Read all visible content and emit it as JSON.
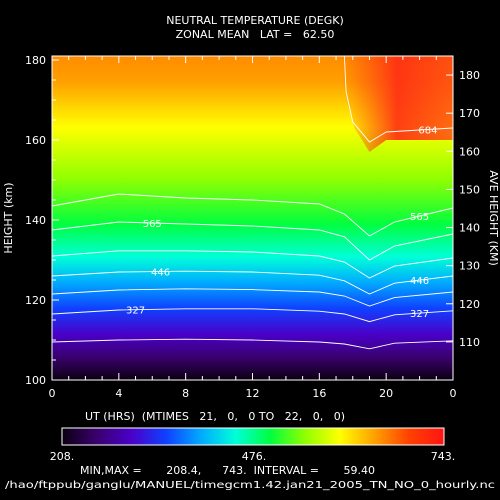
{
  "chart_data": {
    "type": "heatmap",
    "title": "NEUTRAL TEMPERATURE (DEGK)",
    "subtitle": "ZONAL MEAN   LAT =   62.50",
    "xlabel": "UT (HRS)  (MTIMES   21,   0,   0 TO   22,   0,   0)",
    "ylabel": "HEIGHT (km)",
    "y2label": "AVE HEIGHT (KM)",
    "x_ticks": [
      "0",
      "4",
      "8",
      "12",
      "16",
      "20",
      "0"
    ],
    "x_tick_values": [
      0,
      4,
      8,
      12,
      16,
      20,
      24
    ],
    "xlim": [
      0,
      24
    ],
    "y_ticks": [
      "100",
      "120",
      "140",
      "160",
      "180"
    ],
    "y_tick_values": [
      100,
      120,
      140,
      160,
      180
    ],
    "ylim": [
      100,
      181
    ],
    "y2_ticks": [
      "110",
      "120",
      "130",
      "140",
      "150",
      "160",
      "170",
      "180"
    ],
    "y2_tick_values": [
      110,
      120,
      130,
      140,
      150,
      160,
      170,
      180
    ],
    "y2lim": [
      100,
      185
    ],
    "colorbar": {
      "min_label": "208.",
      "mid_label": "476.",
      "max_label": "743.",
      "min": 208,
      "max": 743,
      "colors": [
        "#0a0010",
        "#3a006e",
        "#4a00c8",
        "#1040ff",
        "#00aaff",
        "#00ffd8",
        "#00ff40",
        "#90ff00",
        "#ffff00",
        "#ffa000",
        "#ff4000",
        "#ff1414"
      ]
    },
    "contours": [
      {
        "value": 327,
        "label": "327",
        "points": [
          [
            0,
            109.5
          ],
          [
            4,
            110.0
          ],
          [
            8,
            110.2
          ],
          [
            12,
            110.0
          ],
          [
            16,
            109.5
          ],
          [
            17.5,
            109.0
          ],
          [
            19,
            107.8
          ],
          [
            20.5,
            109.2
          ],
          [
            24,
            109.8
          ]
        ]
      },
      {
        "value": 327,
        "label": "327",
        "points": [
          [
            0,
            116.5
          ],
          [
            4,
            117.5
          ],
          [
            8,
            117.8
          ],
          [
            12,
            117.8
          ],
          [
            16,
            117.2
          ],
          [
            17.5,
            116.5
          ],
          [
            19,
            114.6
          ],
          [
            20.5,
            116.3
          ],
          [
            24,
            117.3
          ]
        ]
      },
      {
        "value": 327,
        "label": "327",
        "points": [
          [
            0,
            121.5
          ],
          [
            4,
            122.5
          ],
          [
            8,
            122.8
          ],
          [
            12,
            122.6
          ],
          [
            16,
            122.0
          ],
          [
            17.5,
            121.0
          ],
          [
            19,
            118.5
          ],
          [
            20.5,
            120.6
          ],
          [
            24,
            122.0
          ]
        ]
      },
      {
        "value": 446,
        "label": "446",
        "points": [
          [
            0,
            126.0
          ],
          [
            4,
            127.0
          ],
          [
            8,
            127.2
          ],
          [
            12,
            127.0
          ],
          [
            16,
            126.2
          ],
          [
            17.5,
            124.8
          ],
          [
            19,
            121.5
          ],
          [
            20.5,
            124.2
          ],
          [
            24,
            126.0
          ]
        ]
      },
      {
        "value": 446,
        "label": "446",
        "points": [
          [
            0,
            131.0
          ],
          [
            4,
            132.3
          ],
          [
            8,
            132.3
          ],
          [
            12,
            132.0
          ],
          [
            16,
            131.0
          ],
          [
            17.5,
            129.5
          ],
          [
            19,
            125.5
          ],
          [
            20.5,
            128.5
          ],
          [
            24,
            130.5
          ]
        ]
      },
      {
        "value": 565,
        "label": "565",
        "points": [
          [
            0,
            137.5
          ],
          [
            4,
            139.5
          ],
          [
            8,
            139.0
          ],
          [
            12,
            138.5
          ],
          [
            16,
            137.5
          ],
          [
            17.5,
            135.8
          ],
          [
            19,
            130.0
          ],
          [
            20.5,
            133.5
          ],
          [
            24,
            136.5
          ]
        ]
      },
      {
        "value": 565,
        "label": "565",
        "points": [
          [
            0,
            143.5
          ],
          [
            4,
            146.5
          ],
          [
            8,
            145.5
          ],
          [
            12,
            145.0
          ],
          [
            16,
            144.0
          ],
          [
            17.5,
            141.5
          ],
          [
            19,
            136.0
          ],
          [
            20.5,
            139.5
          ],
          [
            24,
            143.0
          ]
        ]
      },
      {
        "value": 684,
        "label": "684",
        "points": [
          [
            17.5,
            181
          ],
          [
            17.6,
            172
          ],
          [
            18.0,
            164.5
          ],
          [
            19.0,
            159.5
          ],
          [
            20.0,
            162.0
          ],
          [
            22,
            162.5
          ],
          [
            24,
            163.0
          ]
        ]
      }
    ],
    "stats_line": "MIN,MAX =       208.4,      743.  INTERVAL =       59.40",
    "file_path": "/hao/ftppub/ganglu/MANUEL/timegcm1.42.jan21_2005_TN_NO_0_hourly.nc"
  }
}
